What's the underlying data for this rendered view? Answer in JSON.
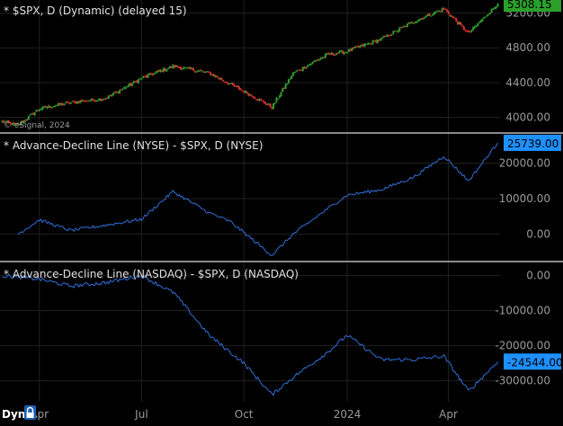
{
  "colors": {
    "background": "#000000",
    "grid": "#202020",
    "separator": "#8a8a8a",
    "axis_text": "#9a9a9a",
    "title_text": "#e0e0e0",
    "up_candle": "#2f9e2f",
    "down_candle": "#e03030",
    "ad_line": "#2f6fd8",
    "price_badge": "#2aa02a",
    "nyse_badge": "#1e90ff",
    "nasdaq_badge": "#1e90ff",
    "badge_text": "#000000",
    "dyn_text": "#ffffff"
  },
  "footer": {
    "mode_label": "Dyn",
    "lock_icon": "lock-icon"
  },
  "chart_data": [
    {
      "type": "candlestick",
      "title": "* $SPX, D (Dynamic) (delayed 15)",
      "watermark": "© eSignal, 2024",
      "last_value_label": "5308.15",
      "y_ticks": [
        5200,
        4800,
        4400,
        4000
      ],
      "y_tick_labels": [
        "5200.00",
        "4800.00",
        "4400.00",
        "4000.00"
      ],
      "ylim": [
        3830,
        5350
      ],
      "x": [
        "2023-03-01",
        "2023-03-15",
        "2023-04-03",
        "2023-05-01",
        "2023-06-01",
        "2023-07-03",
        "2023-07-31",
        "2023-09-01",
        "2023-10-02",
        "2023-10-27",
        "2023-11-15",
        "2023-12-15",
        "2024-01-02",
        "2024-02-01",
        "2024-03-01",
        "2024-03-28",
        "2024-04-19",
        "2024-05-15"
      ],
      "close": [
        3950,
        3910,
        4100,
        4170,
        4220,
        4450,
        4590,
        4510,
        4300,
        4117,
        4510,
        4720,
        4760,
        4900,
        5100,
        5250,
        4967,
        5308
      ]
    },
    {
      "type": "line",
      "title": "* Advance-Decline Line (NYSE) - $SPX, D (NYSE)",
      "series_name": "Advance-Decline Line (NYSE)",
      "last_value_label": "25739.00",
      "y_ticks": [
        20000,
        10000,
        0
      ],
      "y_tick_labels": [
        "20000.00",
        "10000.00",
        "0.00"
      ],
      "ylim": [
        -7500,
        28000
      ],
      "x": [
        "2023-03-15",
        "2023-04-03",
        "2023-05-01",
        "2023-06-01",
        "2023-07-03",
        "2023-07-31",
        "2023-09-01",
        "2023-09-20",
        "2023-10-27",
        "2023-11-15",
        "2023-12-15",
        "2024-01-02",
        "2024-02-01",
        "2024-03-01",
        "2024-03-28",
        "2024-04-19",
        "2024-05-15"
      ],
      "values": [
        0,
        4000,
        1000,
        2500,
        4200,
        12000,
        6000,
        3500,
        -6000,
        0,
        7000,
        11000,
        12500,
        16000,
        22000,
        15000,
        25739
      ]
    },
    {
      "type": "line",
      "title": "* Advance-Decline Line (NASDAQ) - $SPX, D (NASDAQ)",
      "series_name": "Advance-Decline Line (NASDAQ)",
      "last_value_label": "-24544.00",
      "y_ticks": [
        0,
        -10000,
        -20000,
        -30000
      ],
      "y_tick_labels": [
        "0.00",
        "-10000.00",
        "-20000.00",
        "-30000.00"
      ],
      "ylim": [
        -36000,
        3500
      ],
      "x": [
        "2023-03-01",
        "2023-04-03",
        "2023-05-01",
        "2023-06-01",
        "2023-07-03",
        "2023-08-01",
        "2023-09-01",
        "2023-10-02",
        "2023-10-27",
        "2023-11-15",
        "2023-12-15",
        "2024-01-02",
        "2024-02-01",
        "2024-03-01",
        "2024-03-28",
        "2024-04-19",
        "2024-05-15"
      ],
      "values": [
        0,
        -1000,
        -3000,
        -2000,
        0,
        -5000,
        -17000,
        -25000,
        -34000,
        -29000,
        -22000,
        -17000,
        -24000,
        -24000,
        -23000,
        -33000,
        -24544
      ]
    }
  ],
  "x_axis": {
    "tick_labels": [
      "Apr",
      "Jul",
      "Oct",
      "2024",
      "Apr"
    ],
    "tick_dates": [
      "2023-04-03",
      "2023-07-03",
      "2023-10-02",
      "2024-01-02",
      "2024-04-01"
    ]
  }
}
